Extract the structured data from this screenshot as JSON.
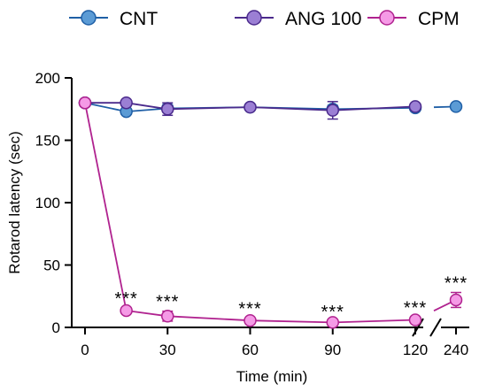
{
  "chart_data": {
    "type": "line",
    "xlabel": "Time (min)",
    "ylabel": "Rotarod latency (sec)",
    "ylim": [
      0,
      200
    ],
    "yticks": [
      0,
      50,
      100,
      150,
      200
    ],
    "xtick_labels": [
      "0",
      "30",
      "60",
      "90",
      "120",
      "240"
    ],
    "x_axis_break": "between 120 and 240",
    "legend_position": "top",
    "series": [
      {
        "name": "CNT",
        "color": "#1f5fa6",
        "fill": "#5b9bd5",
        "points": [
          {
            "x": 0,
            "y": 180,
            "err": 0
          },
          {
            "x": 15,
            "y": 173,
            "err": 2
          },
          {
            "x": 30,
            "y": 175.5,
            "err": 3
          },
          {
            "x": 60,
            "y": 176.5,
            "err": 1
          },
          {
            "x": 90,
            "y": 175,
            "err": 3
          },
          {
            "x": 120,
            "y": 176,
            "err": 2
          },
          {
            "x": 240,
            "y": 177,
            "err": 1
          }
        ]
      },
      {
        "name": "ANG 100",
        "color": "#4b2a8c",
        "fill": "#9b7fd4",
        "points": [
          {
            "x": 0,
            "y": 180,
            "err": 0
          },
          {
            "x": 15,
            "y": 180,
            "err": 1
          },
          {
            "x": 30,
            "y": 175,
            "err": 5
          },
          {
            "x": 60,
            "y": 176.5,
            "err": 1
          },
          {
            "x": 90,
            "y": 174,
            "err": 7
          },
          {
            "x": 120,
            "y": 177,
            "err": 2
          }
        ]
      },
      {
        "name": "CPM",
        "color": "#b0228f",
        "fill": "#f59ae6",
        "points": [
          {
            "x": 0,
            "y": 180,
            "err": 0
          },
          {
            "x": 15,
            "y": 13.5,
            "err": 2
          },
          {
            "x": 30,
            "y": 9,
            "err": 4
          },
          {
            "x": 60,
            "y": 5.5,
            "err": 2
          },
          {
            "x": 90,
            "y": 4,
            "err": 1
          },
          {
            "x": 120,
            "y": 6,
            "err": 2
          },
          {
            "x": 240,
            "y": 22,
            "err": 6
          }
        ]
      }
    ],
    "annotations": [
      {
        "x": 15,
        "text": "***"
      },
      {
        "x": 30,
        "text": "***"
      },
      {
        "x": 60,
        "text": "***"
      },
      {
        "x": 90,
        "text": "***"
      },
      {
        "x": 120,
        "text": "***"
      },
      {
        "x": 240,
        "text": "***"
      }
    ]
  }
}
